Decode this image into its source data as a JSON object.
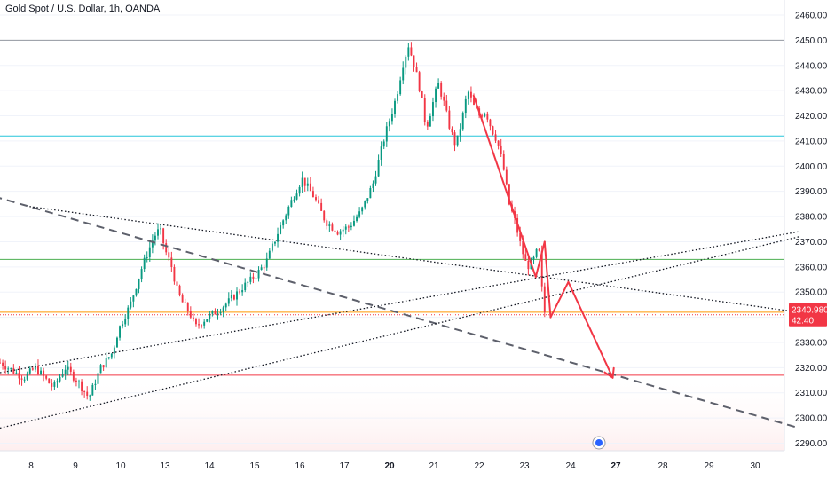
{
  "chart_title": "Gold Spot / U.S. Dollar, 1h, OANDA",
  "colors": {
    "up": "#089981",
    "down": "#f23645",
    "arrow": "#f23645",
    "hline_gray": "#9598a1",
    "hline_teal": "#26c6da",
    "hline_green": "#4caf50",
    "hline_orange": "#ff9800",
    "hline_red": "#f23645",
    "price_badge": "#f23645"
  },
  "chart_data": {
    "type": "candlestick",
    "title": "Gold Spot / U.S. Dollar, 1h, OANDA",
    "ylim": [
      2287,
      2466
    ],
    "y_ticks": [
      2460,
      2450,
      2440,
      2430,
      2420,
      2410,
      2400,
      2390,
      2380,
      2370,
      2360,
      2350,
      2340,
      2330,
      2320,
      2310,
      2300,
      2290
    ],
    "x_ticks": [
      {
        "label": "8",
        "bold": false
      },
      {
        "label": "9",
        "bold": false
      },
      {
        "label": "10",
        "bold": false
      },
      {
        "label": "13",
        "bold": false
      },
      {
        "label": "14",
        "bold": false
      },
      {
        "label": "15",
        "bold": false
      },
      {
        "label": "16",
        "bold": false
      },
      {
        "label": "17",
        "bold": false
      },
      {
        "label": "20",
        "bold": true
      },
      {
        "label": "21",
        "bold": false
      },
      {
        "label": "22",
        "bold": false
      },
      {
        "label": "23",
        "bold": false
      },
      {
        "label": "24",
        "bold": false
      },
      {
        "label": "27",
        "bold": true
      },
      {
        "label": "28",
        "bold": false
      },
      {
        "label": "29",
        "bold": false
      },
      {
        "label": "30",
        "bold": false
      }
    ],
    "path_points": [
      [
        0,
        2322
      ],
      [
        8,
        2316
      ],
      [
        12,
        2320
      ],
      [
        18,
        2312
      ],
      [
        22,
        2320
      ],
      [
        26,
        2315
      ],
      [
        30,
        2308
      ],
      [
        34,
        2320
      ],
      [
        38,
        2326
      ],
      [
        40,
        2335
      ],
      [
        44,
        2345
      ],
      [
        48,
        2360
      ],
      [
        52,
        2372
      ],
      [
        54,
        2375
      ],
      [
        56,
        2366
      ],
      [
        58,
        2360
      ],
      [
        60,
        2350
      ],
      [
        62,
        2345
      ],
      [
        64,
        2342
      ],
      [
        66,
        2336
      ],
      [
        70,
        2340
      ],
      [
        74,
        2343
      ],
      [
        78,
        2347
      ],
      [
        82,
        2352
      ],
      [
        86,
        2356
      ],
      [
        90,
        2362
      ],
      [
        94,
        2374
      ],
      [
        98,
        2385
      ],
      [
        102,
        2395
      ],
      [
        106,
        2388
      ],
      [
        110,
        2378
      ],
      [
        114,
        2374
      ],
      [
        118,
        2376
      ],
      [
        122,
        2382
      ],
      [
        126,
        2393
      ],
      [
        130,
        2412
      ],
      [
        134,
        2428
      ],
      [
        136,
        2440
      ],
      [
        138,
        2448
      ],
      [
        140,
        2440
      ],
      [
        142,
        2430
      ],
      [
        144,
        2415
      ],
      [
        146,
        2424
      ],
      [
        148,
        2433
      ],
      [
        150,
        2425
      ],
      [
        152,
        2415
      ],
      [
        154,
        2408
      ],
      [
        156,
        2418
      ],
      [
        158,
        2430
      ],
      [
        160,
        2424
      ],
      [
        162,
        2420
      ],
      [
        164,
        2422
      ],
      [
        166,
        2415
      ],
      [
        168,
        2410
      ],
      [
        170,
        2400
      ],
      [
        172,
        2385
      ],
      [
        174,
        2378
      ],
      [
        176,
        2368
      ],
      [
        178,
        2360
      ],
      [
        180,
        2362
      ],
      [
        182,
        2368
      ],
      [
        183,
        2352
      ],
      [
        184,
        2342
      ]
    ],
    "horizontal_levels": [
      {
        "value": 2450,
        "color": "hline_gray"
      },
      {
        "value": 2412,
        "color": "hline_teal"
      },
      {
        "value": 2383,
        "color": "hline_teal"
      },
      {
        "value": 2363,
        "color": "hline_green"
      },
      {
        "value": 2342,
        "color": "hline_orange"
      },
      {
        "value": 2317,
        "color": "hline_red"
      }
    ],
    "trend_lines": [
      {
        "style": "dashed",
        "from": [
          -2,
          2388
        ],
        "to": [
          270,
          2296
        ]
      },
      {
        "style": "dotted",
        "from": [
          10,
          2384
        ],
        "to": [
          270,
          2342
        ]
      },
      {
        "style": "dotted",
        "from": [
          0,
          2318
        ],
        "to": [
          270,
          2374
        ]
      },
      {
        "style": "dotted",
        "from": [
          0,
          2296
        ],
        "to": [
          270,
          2372
        ]
      }
    ],
    "projection_arrows": [
      {
        "from": [
          160,
          2428
        ],
        "to": [
          181,
          2356
        ]
      },
      {
        "from": [
          181,
          2356
        ],
        "to": [
          184,
          2370
        ]
      },
      {
        "from": [
          184,
          2370
        ],
        "to": [
          186,
          2340
        ]
      },
      {
        "from": [
          186,
          2340
        ],
        "to": [
          192,
          2354
        ]
      },
      {
        "from": [
          192,
          2354
        ],
        "to": [
          207,
          2316
        ]
      }
    ],
    "current_price": {
      "value": "2340.980",
      "countdown": "42:40",
      "level": 2341
    }
  }
}
